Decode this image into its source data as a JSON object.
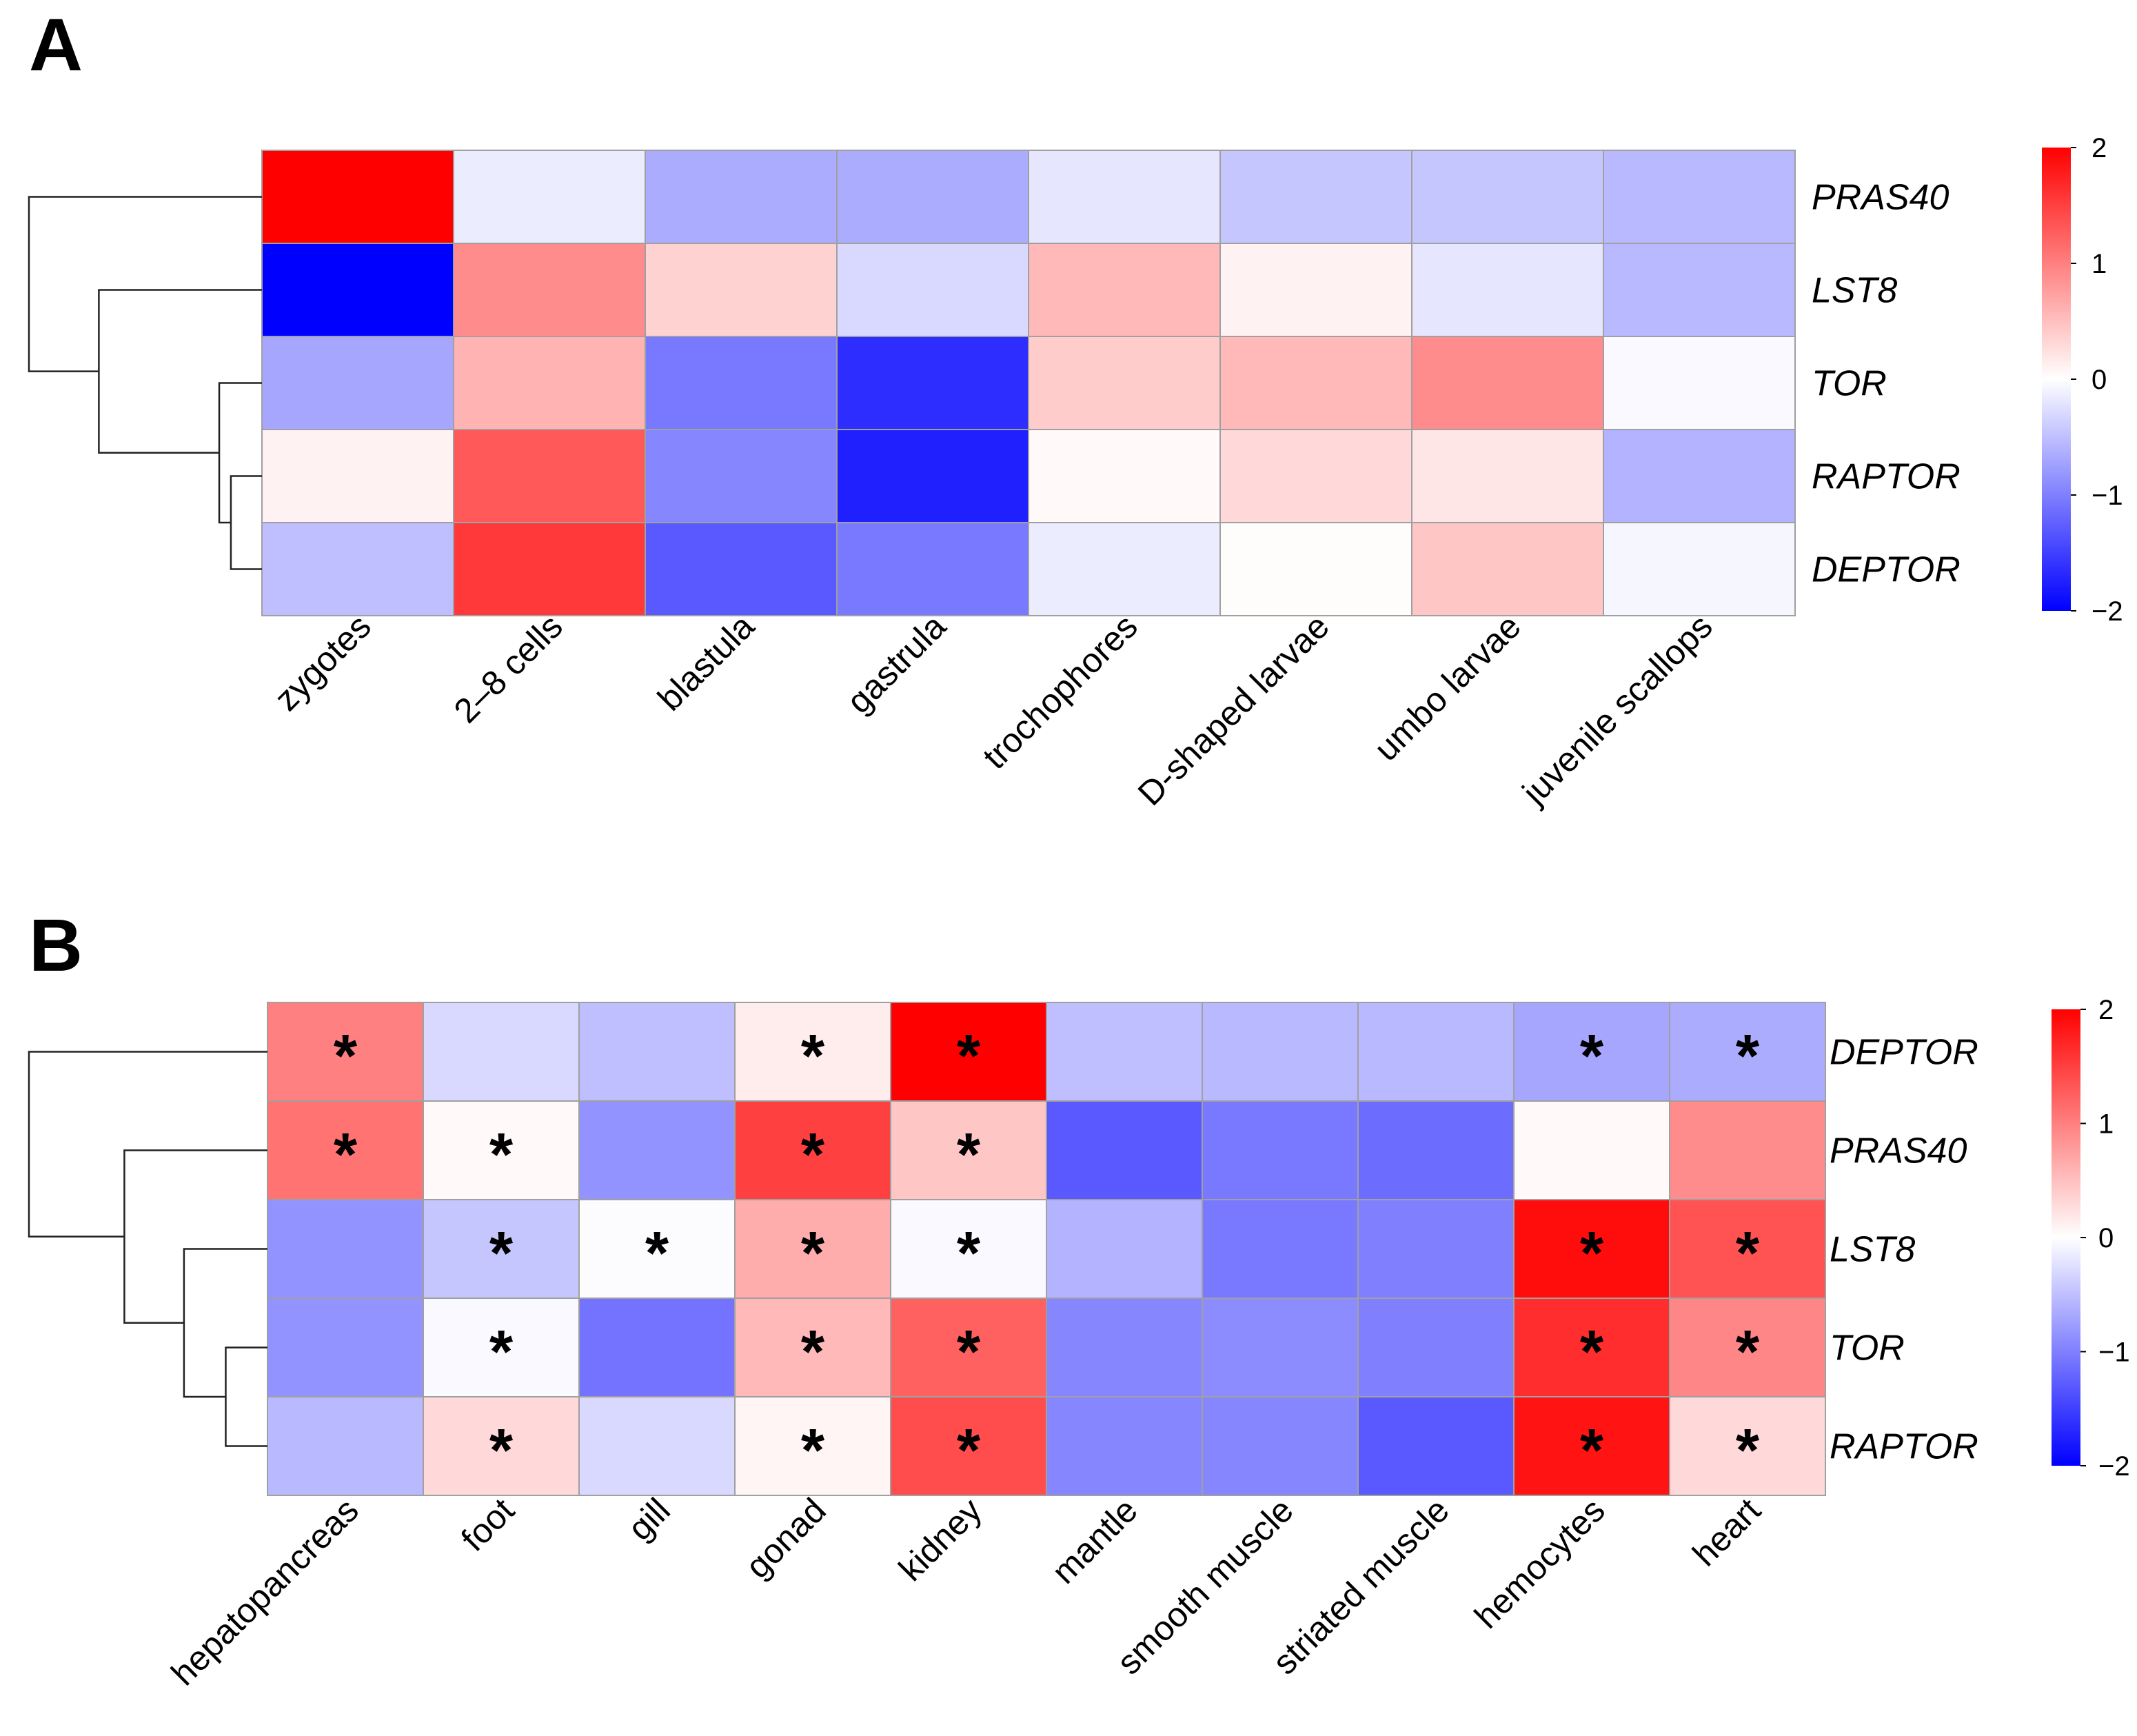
{
  "chart_data": [
    {
      "type": "heatmap",
      "panel": "A",
      "title": "",
      "xlabel": "",
      "ylabel": "",
      "rows": [
        "PRAS40",
        "LST8",
        "TOR",
        "RAPTOR",
        "DEPTOR"
      ],
      "columns": [
        "zygotes",
        "2–8 cells",
        "blastula",
        "gastrula",
        "trochophores",
        "D-shaped larvae",
        "umbo larvae",
        "juvenile scallops"
      ],
      "values": [
        [
          2.0,
          -0.15,
          -0.65,
          -0.65,
          -0.2,
          -0.45,
          -0.45,
          -0.55
        ],
        [
          -2.0,
          0.9,
          0.35,
          -0.3,
          0.55,
          0.1,
          -0.2,
          -0.55
        ],
        [
          -0.7,
          0.6,
          -1.05,
          -1.65,
          0.4,
          0.55,
          0.9,
          -0.05
        ],
        [
          0.1,
          1.3,
          -0.95,
          -1.75,
          0.05,
          0.3,
          0.2,
          -0.6
        ],
        [
          -0.5,
          1.55,
          -1.3,
          -1.05,
          -0.15,
          0.02,
          0.45,
          -0.07
        ]
      ],
      "significant": [],
      "color_scale": {
        "min": -2,
        "max": 2,
        "low": "#0000ff",
        "mid": "#ffffff",
        "high": "#ff0000"
      },
      "legend_ticks": [
        "2",
        "1",
        "0",
        "−1",
        "−2"
      ],
      "legend_values": [
        2,
        1,
        0,
        -1,
        -2
      ],
      "dendrogram": {
        "order": [
          "PRAS40",
          "LST8",
          "TOR",
          "RAPTOR",
          "DEPTOR"
        ],
        "merges": [
          [
            3,
            4,
            0.4
          ],
          [
            2,
            5,
            0.55
          ],
          [
            1,
            6,
            2.1
          ],
          [
            0,
            7,
            3.0
          ]
        ]
      }
    },
    {
      "type": "heatmap",
      "panel": "B",
      "title": "",
      "xlabel": "",
      "ylabel": "",
      "rows": [
        "DEPTOR",
        "PRAS40",
        "LST8",
        "TOR",
        "RAPTOR"
      ],
      "columns": [
        "hepatopancreas",
        "foot",
        "gill",
        "gonad",
        "kidney",
        "mantle",
        "smooth muscle",
        "striated muscle",
        "hemocytes",
        "heart"
      ],
      "values": [
        [
          1.0,
          -0.3,
          -0.5,
          0.15,
          2.0,
          -0.5,
          -0.55,
          -0.55,
          -0.7,
          -0.65
        ],
        [
          1.1,
          0.05,
          -0.85,
          1.5,
          0.45,
          -1.3,
          -1.05,
          -1.15,
          0.05,
          0.9
        ],
        [
          -0.85,
          -0.45,
          -0.02,
          0.65,
          -0.05,
          -0.6,
          -1.05,
          -1.0,
          1.9,
          1.35
        ],
        [
          -0.85,
          -0.05,
          -1.1,
          0.55,
          1.25,
          -0.95,
          -0.9,
          -1.0,
          1.65,
          0.95
        ],
        [
          -0.55,
          0.3,
          -0.3,
          0.08,
          1.4,
          -0.95,
          -0.95,
          -1.3,
          1.85,
          0.3
        ]
      ],
      "significant": [
        [
          0,
          0
        ],
        [
          0,
          3
        ],
        [
          0,
          4
        ],
        [
          0,
          8
        ],
        [
          0,
          9
        ],
        [
          1,
          0
        ],
        [
          1,
          1
        ],
        [
          1,
          3
        ],
        [
          1,
          4
        ],
        [
          2,
          1
        ],
        [
          2,
          2
        ],
        [
          2,
          3
        ],
        [
          2,
          4
        ],
        [
          2,
          8
        ],
        [
          2,
          9
        ],
        [
          3,
          1
        ],
        [
          3,
          3
        ],
        [
          3,
          4
        ],
        [
          3,
          8
        ],
        [
          3,
          9
        ],
        [
          4,
          1
        ],
        [
          4,
          3
        ],
        [
          4,
          4
        ],
        [
          4,
          8
        ],
        [
          4,
          9
        ]
      ],
      "significance_marker": "*",
      "color_scale": {
        "min": -2,
        "max": 2,
        "low": "#0000ff",
        "mid": "#ffffff",
        "high": "#ff0000"
      },
      "legend_ticks": [
        "2",
        "1",
        "0",
        "−1",
        "−2"
      ],
      "legend_values": [
        2,
        1,
        0,
        -1,
        -2
      ],
      "dendrogram": {
        "order": [
          "DEPTOR",
          "PRAS40",
          "LST8",
          "TOR",
          "RAPTOR"
        ],
        "merges": [
          [
            3,
            4,
            0.35
          ],
          [
            2,
            5,
            0.7
          ],
          [
            1,
            6,
            1.2
          ],
          [
            0,
            7,
            2.0
          ]
        ]
      }
    }
  ]
}
